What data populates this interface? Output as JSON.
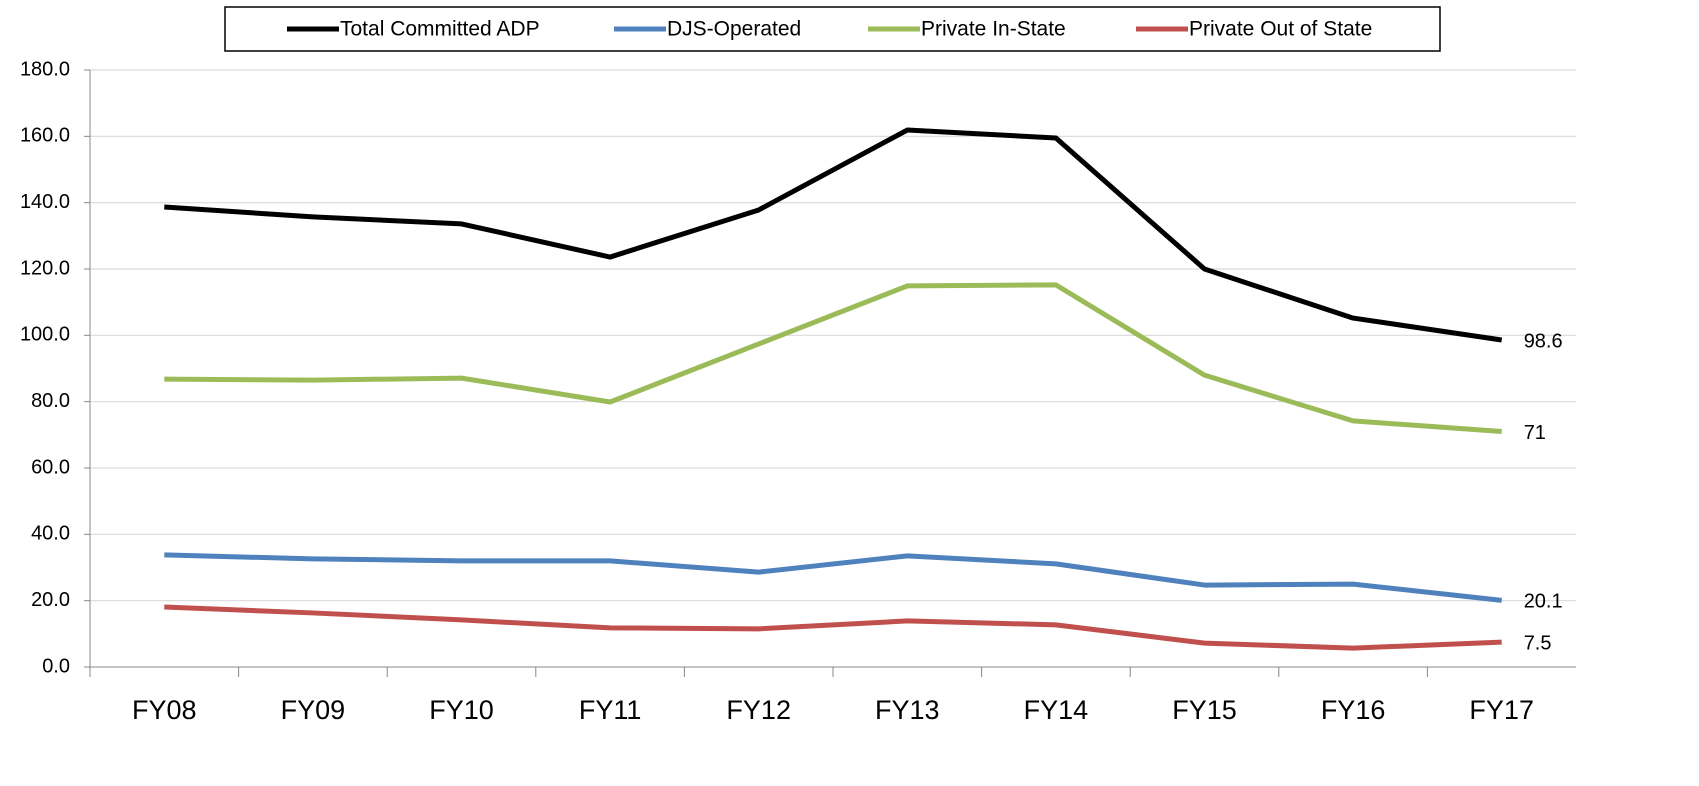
{
  "chart_data": {
    "type": "line",
    "categories": [
      "FY08",
      "FY09",
      "FY10",
      "FY11",
      "FY12",
      "FY13",
      "FY14",
      "FY15",
      "FY16",
      "FY17"
    ],
    "series": [
      {
        "name": "Total Committed ADP",
        "color": "#000000",
        "values": [
          138.7,
          135.7,
          133.6,
          123.6,
          137.8,
          161.9,
          159.5,
          120.0,
          105.2,
          98.6
        ]
      },
      {
        "name": "DJS-Operated",
        "color": "#4f81bd",
        "values": [
          33.8,
          32.6,
          32.0,
          32.0,
          28.6,
          33.5,
          31.1,
          24.7,
          25.0,
          20.1
        ]
      },
      {
        "name": "Private In-State",
        "color": "#9bbb59",
        "values": [
          86.8,
          86.5,
          87.1,
          79.9,
          97.4,
          114.9,
          115.2,
          88.0,
          74.2,
          71.0
        ]
      },
      {
        "name": "Private Out of State",
        "color": "#c0504d",
        "values": [
          18.1,
          16.3,
          14.2,
          11.8,
          11.5,
          13.9,
          12.7,
          7.2,
          5.7,
          7.5
        ]
      }
    ],
    "ylim": [
      0,
      180
    ],
    "yticks": [
      {
        "value": 0,
        "label": "0.0"
      },
      {
        "value": 20,
        "label": "20.0"
      },
      {
        "value": 40,
        "label": "40.0"
      },
      {
        "value": 60,
        "label": "60.0"
      },
      {
        "value": 80,
        "label": "80.0"
      },
      {
        "value": 100,
        "label": "100.0"
      },
      {
        "value": 120,
        "label": "120.0"
      },
      {
        "value": 140,
        "label": "140.0"
      },
      {
        "value": 160,
        "label": "160.0"
      },
      {
        "value": 180,
        "label": "180.0"
      }
    ],
    "grid": true,
    "legend": "top"
  }
}
